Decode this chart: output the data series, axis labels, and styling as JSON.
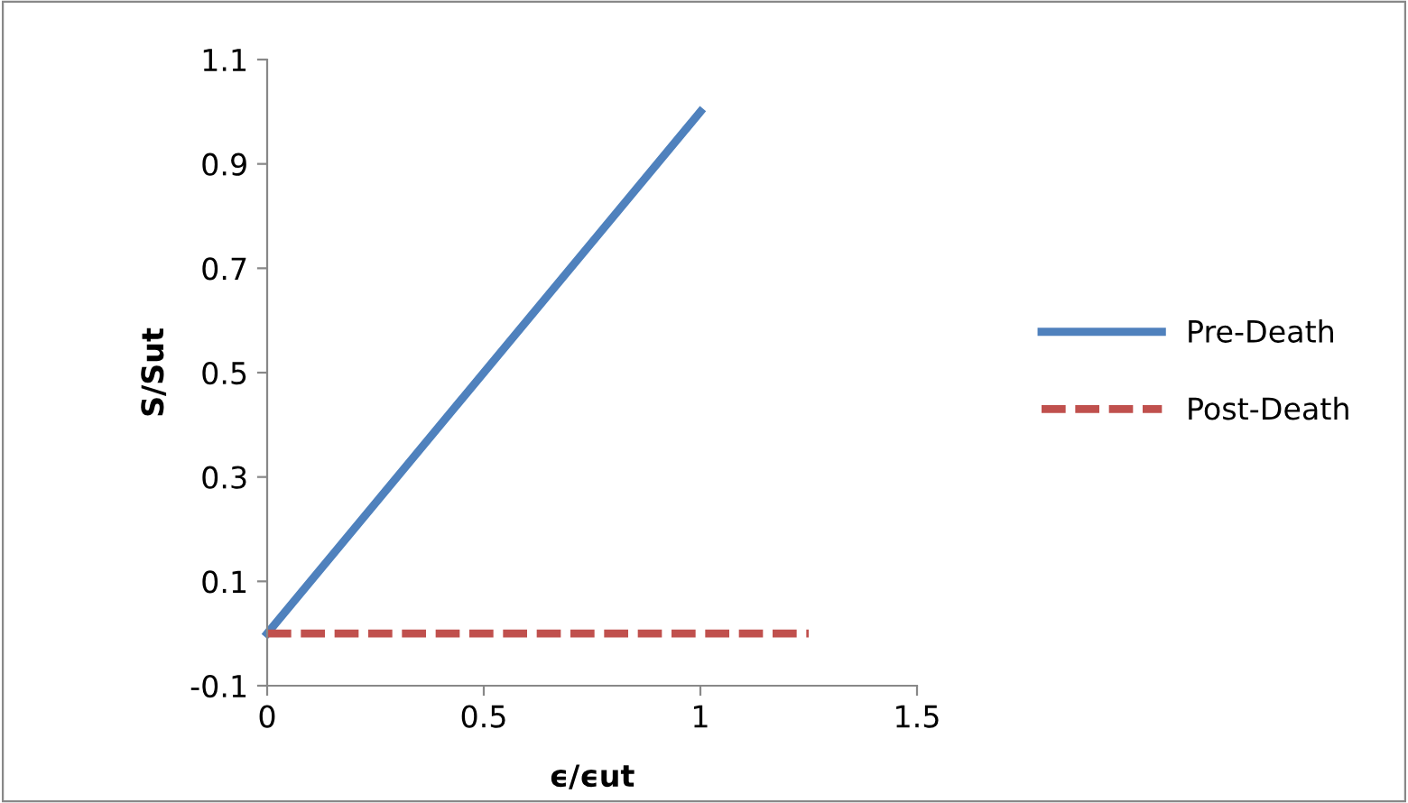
{
  "chart_data": {
    "type": "line",
    "xlabel": "ϵ/ϵut",
    "ylabel": "S/Sut",
    "series": [
      {
        "name": "Pre-Death",
        "color": "#4f81bd",
        "x": [
          0,
          1
        ],
        "values": [
          0,
          1
        ],
        "line_style": "solid"
      },
      {
        "name": "Post-Death",
        "color": "#c0504d",
        "x": [
          0,
          1.25
        ],
        "values": [
          0,
          0
        ],
        "line_style": "dashed"
      }
    ],
    "xlim": [
      0,
      1.5
    ],
    "xticks": [
      0,
      0.5,
      1,
      1.5
    ],
    "ylim": [
      -0.1,
      1.1
    ],
    "yticks": [
      -0.1,
      0.1,
      0.3,
      0.5,
      0.7,
      0.9,
      1.1
    ],
    "grid": false,
    "legend": "right",
    "marker": "none"
  }
}
